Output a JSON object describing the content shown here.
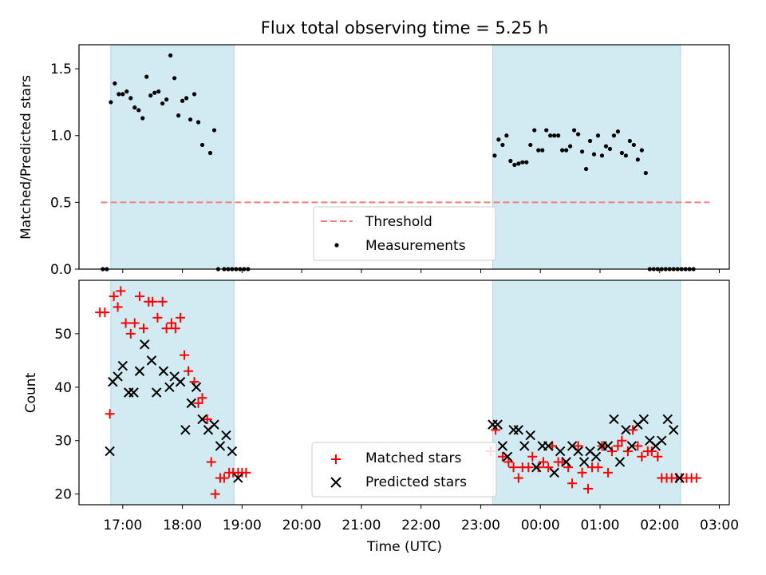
{
  "title": "Flux total observing time = 5.25 h",
  "colors": {
    "shade": "#add8e6",
    "threshold": "#f08080",
    "measurement": "#000000",
    "matched": "#ff0000",
    "predicted": "#000000"
  },
  "chart_data": [
    {
      "type": "scatter",
      "panel": "top",
      "ylabel": "Matched/Predicted stars",
      "ylim": [
        0,
        1.68
      ],
      "yticks": [
        "0.0",
        "0.5",
        "1.0",
        "1.5"
      ],
      "threshold": 0.5,
      "threshold_x_range": [
        "16:38",
        "02:50"
      ],
      "shaded_intervals": [
        [
          "16:48",
          "18:52"
        ],
        [
          "23:12",
          "02:21"
        ]
      ],
      "legend": {
        "position": "lower-center",
        "entries": [
          "Threshold",
          "Measurements"
        ]
      },
      "series": [
        {
          "name": "Measurements",
          "x": [
            "16:40",
            "16:44",
            "16:48",
            "16:52",
            "16:56",
            "17:00",
            "17:04",
            "17:08",
            "17:12",
            "17:16",
            "17:20",
            "17:24",
            "17:28",
            "17:32",
            "17:36",
            "17:40",
            "17:44",
            "17:48",
            "17:52",
            "17:56",
            "18:00",
            "18:04",
            "18:08",
            "18:12",
            "18:16",
            "18:20",
            "18:28",
            "18:32",
            "18:36",
            "18:42",
            "18:46",
            "18:50",
            "18:54",
            "18:58",
            "19:02",
            "19:06",
            "23:14",
            "23:18",
            "23:22",
            "23:26",
            "23:30",
            "23:34",
            "23:38",
            "23:42",
            "23:46",
            "23:50",
            "23:54",
            "23:58",
            "00:02",
            "00:06",
            "00:10",
            "00:14",
            "00:18",
            "00:22",
            "00:26",
            "00:30",
            "00:34",
            "00:38",
            "00:42",
            "00:46",
            "00:50",
            "00:54",
            "00:58",
            "01:02",
            "01:06",
            "01:10",
            "01:14",
            "01:18",
            "01:22",
            "01:26",
            "01:30",
            "01:34",
            "01:38",
            "01:42",
            "01:46",
            "01:50",
            "01:54",
            "01:58",
            "02:02",
            "02:06",
            "02:10",
            "02:14",
            "02:18",
            "02:22",
            "02:26",
            "02:30",
            "02:34"
          ],
          "y": [
            0.0,
            0.0,
            1.25,
            1.39,
            1.31,
            1.31,
            1.33,
            1.28,
            1.21,
            1.19,
            1.13,
            1.44,
            1.3,
            1.32,
            1.33,
            1.24,
            1.27,
            1.6,
            1.43,
            1.15,
            1.26,
            1.28,
            1.12,
            1.31,
            1.1,
            0.93,
            0.87,
            1.04,
            0.0,
            0.0,
            0.0,
            0.0,
            0.0,
            0.0,
            0.0,
            0.0,
            0.85,
            0.97,
            0.93,
            1.0,
            0.81,
            0.78,
            0.79,
            0.8,
            0.8,
            0.93,
            1.04,
            0.89,
            0.89,
            1.04,
            1.0,
            1.0,
            1.0,
            0.89,
            0.89,
            0.92,
            1.04,
            1.01,
            0.88,
            0.75,
            0.96,
            0.86,
            1.0,
            0.85,
            0.92,
            0.9,
            1.0,
            1.03,
            0.87,
            0.85,
            0.96,
            0.93,
            0.82,
            0.89,
            0.72,
            0.0,
            0.0,
            0.0,
            0.0,
            0.0,
            0.0,
            0.0,
            0.0,
            0.0,
            0.0,
            0.0,
            0.0
          ]
        }
      ]
    },
    {
      "type": "scatter",
      "panel": "bottom",
      "xlabel": "Time (UTC)",
      "ylabel": "Count",
      "ylim": [
        18,
        60
      ],
      "yticks": [
        "20",
        "30",
        "40",
        "50"
      ],
      "xticks": [
        "17:00",
        "18:00",
        "19:00",
        "20:00",
        "21:00",
        "22:00",
        "23:00",
        "00:00",
        "01:00",
        "02:00",
        "03:00"
      ],
      "shaded_intervals": [
        [
          "16:48",
          "18:52"
        ],
        [
          "23:12",
          "02:21"
        ]
      ],
      "legend": {
        "position": "lower-center",
        "entries": [
          "Matched stars",
          "Predicted stars"
        ]
      },
      "series": [
        {
          "name": "Matched stars",
          "x": [
            "16:37",
            "16:42",
            "16:47",
            "16:51",
            "16:55",
            "16:58",
            "17:03",
            "17:08",
            "17:12",
            "17:17",
            "17:21",
            "17:26",
            "17:30",
            "17:35",
            "17:40",
            "17:44",
            "17:49",
            "17:53",
            "17:58",
            "18:02",
            "18:06",
            "18:12",
            "18:16",
            "18:20",
            "18:25",
            "18:29",
            "18:33",
            "18:38",
            "18:42",
            "18:47",
            "18:51",
            "18:56",
            "19:00",
            "19:04",
            "23:10",
            "23:15",
            "23:22",
            "23:28",
            "23:33",
            "23:38",
            "23:42",
            "23:48",
            "23:52",
            "23:58",
            "00:03",
            "00:08",
            "00:12",
            "00:18",
            "00:22",
            "00:28",
            "00:32",
            "00:38",
            "00:42",
            "00:48",
            "00:52",
            "00:58",
            "01:02",
            "01:08",
            "01:12",
            "01:18",
            "01:22",
            "01:28",
            "01:33",
            "01:38",
            "01:42",
            "01:48",
            "01:52",
            "01:58",
            "02:02",
            "02:07",
            "02:12",
            "02:17",
            "02:22",
            "02:27",
            "02:32",
            "02:37"
          ],
          "y": [
            54,
            54,
            35,
            57,
            55,
            58,
            52,
            50,
            52,
            57,
            51,
            56,
            56,
            53,
            56,
            51,
            52,
            51,
            53,
            46,
            43,
            41,
            37,
            38,
            34,
            26,
            20,
            23,
            23,
            24,
            24,
            24,
            24,
            24,
            28,
            32,
            27,
            26,
            25,
            23,
            25,
            25,
            27,
            25,
            26,
            25,
            29,
            26,
            26,
            25,
            22,
            29,
            24,
            21,
            25,
            25,
            29,
            24,
            28,
            29,
            30,
            28,
            32,
            29,
            27,
            28,
            28,
            27,
            23,
            23,
            23,
            23,
            23,
            23,
            23,
            23
          ]
        },
        {
          "name": "Predicted stars",
          "x": [
            "16:47",
            "16:50",
            "16:55",
            "17:00",
            "17:06",
            "17:11",
            "17:17",
            "17:22",
            "17:29",
            "17:34",
            "17:41",
            "17:47",
            "17:52",
            "17:58",
            "18:03",
            "18:09",
            "18:14",
            "18:20",
            "18:26",
            "18:32",
            "18:38",
            "18:44",
            "18:50",
            "18:56",
            "23:12",
            "23:17",
            "23:22",
            "23:27",
            "23:33",
            "23:38",
            "23:44",
            "23:50",
            "23:56",
            "00:02",
            "00:08",
            "00:14",
            "00:20",
            "00:26",
            "00:32",
            "00:38",
            "00:44",
            "00:50",
            "00:56",
            "01:02",
            "01:08",
            "01:14",
            "01:20",
            "01:26",
            "01:32",
            "01:38",
            "01:44",
            "01:50",
            "01:56",
            "02:02",
            "02:08",
            "02:14",
            "02:20"
          ],
          "y": [
            28,
            41,
            42,
            44,
            39,
            39,
            43,
            48,
            45,
            39,
            43,
            40,
            42,
            41,
            32,
            37,
            40,
            34,
            32,
            33,
            29,
            31,
            28,
            23,
            33,
            33,
            29,
            27,
            32,
            32,
            29,
            31,
            25,
            29,
            29,
            24,
            28,
            26,
            29,
            28,
            26,
            28,
            27,
            29,
            29,
            34,
            26,
            32,
            29,
            33,
            34,
            30,
            29,
            30,
            34,
            32,
            23
          ]
        }
      ]
    }
  ]
}
